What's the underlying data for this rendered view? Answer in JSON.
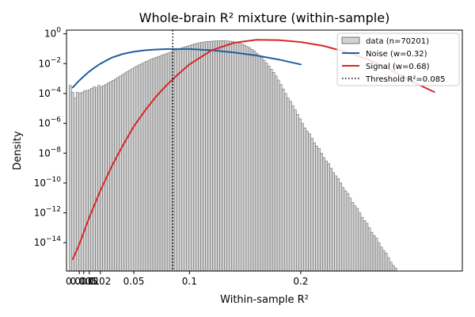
{
  "chart_data": {
    "type": "histogram-mixture",
    "title": "Whole-brain R² mixture (within-sample)",
    "xlabel": "Within-sample R²",
    "ylabel": "Density",
    "x_tick_labels": [
      "0.001",
      "0.005",
      "0.01",
      "0.02",
      "0.05",
      "0.1",
      "0.2"
    ],
    "x_tick_values": [
      0.001,
      0.005,
      0.01,
      0.02,
      0.05,
      0.1,
      0.2
    ],
    "y_tick_exponents": [
      0,
      -2,
      -4,
      -6,
      -8,
      -10,
      -12,
      -14
    ],
    "ylim_log10": [
      -15.9,
      0.25
    ],
    "xlim": [
      -0.0105,
      0.3452
    ],
    "grid": false,
    "legend_position": "top-right",
    "threshold": {
      "label": "Threshold R²=0.085",
      "value": 0.085
    },
    "histogram": {
      "label": "data (n=70201)",
      "bin_edges_start": -0.0082,
      "bin_width": 0.00215,
      "values": [
        0.00035,
        0.00012,
        5e-05,
        0.00012,
        0.0001,
        0.00012,
        0.00015,
        0.00016,
        0.00018,
        0.00022,
        0.00028,
        0.00024,
        0.00035,
        0.00028,
        0.00034,
        0.00042,
        0.00052,
        0.00062,
        0.00078,
        0.00095,
        0.0012,
        0.0015,
        0.0019,
        0.0024,
        0.003,
        0.0037,
        0.0046,
        0.0057,
        0.007,
        0.0085,
        0.0102,
        0.0122,
        0.0145,
        0.0171,
        0.02,
        0.023,
        0.0265,
        0.0305,
        0.035,
        0.04,
        0.046,
        0.052,
        0.06,
        0.07,
        0.08,
        0.092,
        0.105,
        0.12,
        0.135,
        0.15,
        0.17,
        0.19,
        0.21,
        0.23,
        0.25,
        0.27,
        0.285,
        0.3,
        0.31,
        0.32,
        0.33,
        0.34,
        0.35,
        0.35,
        0.35,
        0.34,
        0.33,
        0.32,
        0.3,
        0.28,
        0.26,
        0.23,
        0.2,
        0.17,
        0.14,
        0.115,
        0.09,
        0.07,
        0.05,
        0.036,
        0.025,
        0.017,
        0.011,
        0.007,
        0.0043,
        0.0026,
        0.0015,
        0.0008,
        0.0004,
        0.0002,
        0.0001,
        5e-05,
        3e-05,
        1.5e-05,
        8e-06,
        4e-06,
        2e-06,
        1e-06,
        5e-07,
        3e-07,
        2e-07,
        1e-07,
        5e-08,
        3e-08,
        2e-08,
        1e-08,
        5e-09,
        3e-09,
        2e-09,
        1e-09,
        5e-10,
        3e-10,
        2e-10,
        1e-10,
        5e-11,
        3e-11,
        2e-11,
        1e-11,
        5e-12,
        3e-12,
        2e-12,
        1e-12,
        5e-13,
        3e-13,
        2e-13,
        1e-13,
        5e-14,
        3e-14,
        2e-14,
        1e-14,
        5e-15,
        3e-15,
        2e-15,
        1e-15,
        5e-16,
        3e-16,
        2e-16,
        1e-16
      ]
    },
    "series": [
      {
        "name": "Noise (w=0.32)",
        "color": "#1f5f9e",
        "x": [
          -0.0049,
          0.0,
          0.005,
          0.01,
          0.015,
          0.02,
          0.03,
          0.04,
          0.05,
          0.06,
          0.07,
          0.08,
          0.1,
          0.12,
          0.14,
          0.16,
          0.18,
          0.2
        ],
        "log10_y": [
          -3.6,
          -3.2,
          -2.85,
          -2.52,
          -2.25,
          -2.0,
          -1.6,
          -1.35,
          -1.2,
          -1.1,
          -1.05,
          -1.02,
          -1.02,
          -1.1,
          -1.25,
          -1.45,
          -1.72,
          -2.05
        ]
      },
      {
        "name": "Signal (w=0.68)",
        "color": "#d62728",
        "x": [
          -0.0049,
          0.0,
          0.005,
          0.01,
          0.02,
          0.03,
          0.04,
          0.05,
          0.06,
          0.07,
          0.08,
          0.09,
          0.1,
          0.12,
          0.14,
          0.16,
          0.18,
          0.2,
          0.22,
          0.24,
          0.26,
          0.28,
          0.3,
          0.32
        ],
        "log10_y": [
          -15.1,
          -14.3,
          -13.3,
          -12.3,
          -10.5,
          -8.9,
          -7.5,
          -6.2,
          -5.15,
          -4.2,
          -3.4,
          -2.7,
          -2.05,
          -1.1,
          -0.6,
          -0.4,
          -0.42,
          -0.55,
          -0.8,
          -1.2,
          -1.7,
          -2.4,
          -3.2,
          -3.9
        ]
      }
    ]
  }
}
